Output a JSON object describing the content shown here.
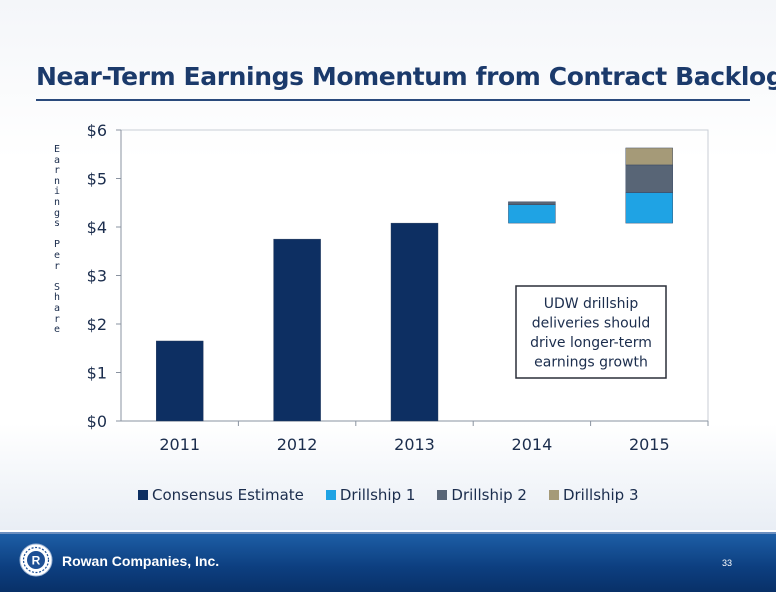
{
  "slide": {
    "title": "Near-Term Earnings Momentum from Contract Backlog",
    "company": "Rowan Companies, Inc.",
    "page_number": "33",
    "logo_letter": "R",
    "footer_color": "#0d3f80"
  },
  "chart_data": {
    "type": "bar",
    "stacked": true,
    "title": "",
    "ylabel": "Earnings Per Share",
    "categories": [
      "2011",
      "2012",
      "2013",
      "2014",
      "2015"
    ],
    "ylim": [
      0,
      6
    ],
    "y_ticks": [
      "$0",
      "$1",
      "$2",
      "$3",
      "$4",
      "$5",
      "$6"
    ],
    "grid": false,
    "legend_position": "bottom",
    "series": [
      {
        "name": "Consensus Estimate",
        "color": "#0d2f62",
        "values": [
          1.65,
          3.75,
          4.08,
          0,
          0
        ]
      },
      {
        "name": "Drillship 1",
        "color": "#1fa3e4",
        "values": [
          0,
          0,
          0,
          0.38,
          0.63
        ]
      },
      {
        "name": "Drillship 2",
        "color": "#586576",
        "values": [
          0,
          0,
          0,
          0.06,
          0.57
        ]
      },
      {
        "name": "Drillship 3",
        "color": "#a59a78",
        "values": [
          0,
          0,
          0,
          0,
          0.35
        ]
      }
    ],
    "base_offsets": [
      0,
      0,
      0,
      4.08,
      4.08
    ],
    "annotation": "UDW drillship deliveries should drive longer-term earnings growth"
  }
}
